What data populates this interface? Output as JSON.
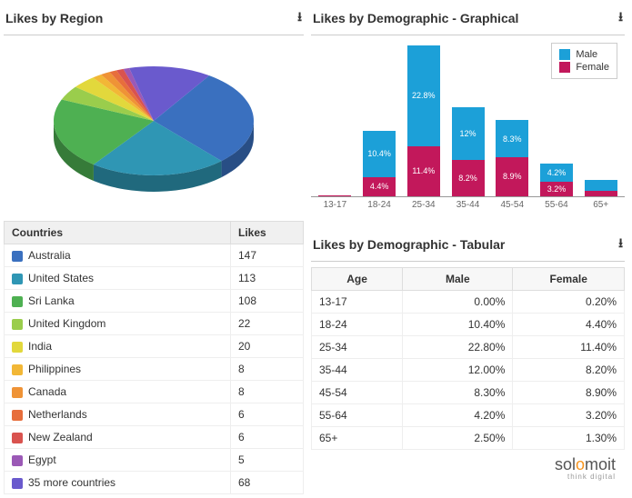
{
  "region": {
    "title": "Likes by Region",
    "columns": [
      "Countries",
      "Likes"
    ],
    "rows": [
      {
        "label": "Australia",
        "likes": 147,
        "color": "#3a70bf"
      },
      {
        "label": "United States",
        "likes": 113,
        "color": "#2f96b4"
      },
      {
        "label": "Sri Lanka",
        "likes": 108,
        "color": "#4eb052"
      },
      {
        "label": "United Kingdom",
        "likes": 22,
        "color": "#9acd4c"
      },
      {
        "label": "India",
        "likes": 20,
        "color": "#e2d83c"
      },
      {
        "label": "Philippines",
        "likes": 8,
        "color": "#f2b736"
      },
      {
        "label": "Canada",
        "likes": 8,
        "color": "#ef9336"
      },
      {
        "label": "Netherlands",
        "likes": 6,
        "color": "#e76e3c"
      },
      {
        "label": "New Zealand",
        "likes": 6,
        "color": "#d9534f"
      },
      {
        "label": "Egypt",
        "likes": 5,
        "color": "#9b59b6"
      },
      {
        "label": "35 more countries",
        "likes": 68,
        "color": "#6a5acd"
      }
    ],
    "pie": {
      "slices": [
        {
          "value": 147,
          "color": "#3a70bf"
        },
        {
          "value": 113,
          "color": "#2f96b4"
        },
        {
          "value": 108,
          "color": "#4eb052"
        },
        {
          "value": 22,
          "color": "#9acd4c"
        },
        {
          "value": 20,
          "color": "#e2d83c"
        },
        {
          "value": 8,
          "color": "#f2b736"
        },
        {
          "value": 8,
          "color": "#ef9336"
        },
        {
          "value": 6,
          "color": "#e76e3c"
        },
        {
          "value": 6,
          "color": "#d9534f"
        },
        {
          "value": 5,
          "color": "#9b59b6"
        },
        {
          "value": 68,
          "color": "#6a5acd"
        }
      ],
      "background": "#ffffff"
    }
  },
  "demoGraph": {
    "title": "Likes by Demographic - Graphical",
    "legend": [
      {
        "label": "Male",
        "color": "#1ca0d8"
      },
      {
        "label": "Female",
        "color": "#c2185b"
      }
    ],
    "categories": [
      "13-17",
      "18-24",
      "25-34",
      "35-44",
      "45-54",
      "55-64",
      "65+"
    ],
    "series": {
      "male": [
        0.0,
        10.4,
        22.8,
        12.0,
        8.3,
        4.2,
        2.5
      ],
      "female": [
        0.2,
        4.4,
        11.4,
        8.2,
        8.9,
        3.2,
        1.3
      ]
    },
    "colors": {
      "male": "#1ca0d8",
      "female": "#c2185b"
    },
    "ymax": 35
  },
  "demoTable": {
    "title": "Likes by Demographic - Tabular",
    "columns": [
      "Age",
      "Male",
      "Female"
    ],
    "rows": [
      {
        "age": "13-17",
        "male": "0.00%",
        "female": "0.20%"
      },
      {
        "age": "18-24",
        "male": "10.40%",
        "female": "4.40%"
      },
      {
        "age": "25-34",
        "male": "22.80%",
        "female": "11.40%"
      },
      {
        "age": "35-44",
        "male": "12.00%",
        "female": "8.20%"
      },
      {
        "age": "45-54",
        "male": "8.30%",
        "female": "8.90%"
      },
      {
        "age": "55-64",
        "male": "4.20%",
        "female": "3.20%"
      },
      {
        "age": "65+",
        "male": "2.50%",
        "female": "1.30%"
      }
    ]
  },
  "logo": {
    "text": "solomoit",
    "tagline": "think digital"
  }
}
